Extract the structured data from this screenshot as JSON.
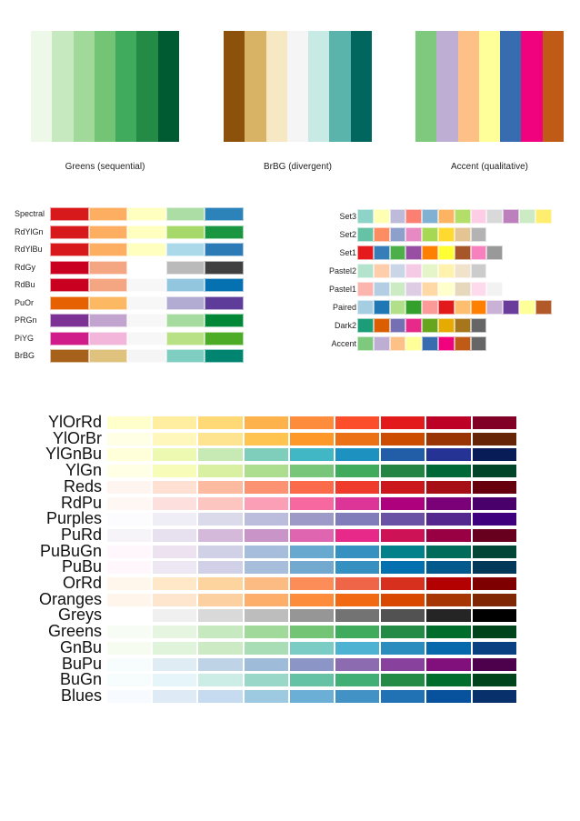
{
  "hero": [
    {
      "caption": "Greens (sequential)",
      "colors": [
        "#edf8e9",
        "#c7e9c0",
        "#a1d99b",
        "#74c476",
        "#41ab5d",
        "#238b45",
        "#005a32"
      ]
    },
    {
      "caption": "BrBG (divergent)",
      "colors": [
        "#8c510a",
        "#d8b365",
        "#f6e8c3",
        "#f5f5f5",
        "#c7eae5",
        "#5ab4ac",
        "#01665e"
      ]
    },
    {
      "caption": "Accent (qualitative)",
      "colors": [
        "#7fc97f",
        "#beaed4",
        "#fdc086",
        "#ffff99",
        "#386cb0",
        "#f0027f",
        "#bf5b17"
      ]
    }
  ],
  "diverging": [
    {
      "name": "Spectral",
      "colors": [
        "#d7191c",
        "#fdae61",
        "#ffffbf",
        "#abdda4",
        "#2b83ba"
      ]
    },
    {
      "name": "RdYlGn",
      "colors": [
        "#d7191c",
        "#fdae61",
        "#ffffbf",
        "#a6d96a",
        "#1a9641"
      ]
    },
    {
      "name": "RdYlBu",
      "colors": [
        "#d7191c",
        "#fdae61",
        "#ffffbf",
        "#abd9e9",
        "#2c7bb6"
      ]
    },
    {
      "name": "RdGy",
      "colors": [
        "#ca0020",
        "#f4a582",
        "#ffffff",
        "#bababa",
        "#404040"
      ]
    },
    {
      "name": "RdBu",
      "colors": [
        "#ca0020",
        "#f4a582",
        "#f7f7f7",
        "#92c5de",
        "#0571b0"
      ]
    },
    {
      "name": "PuOr",
      "colors": [
        "#e66101",
        "#fdb863",
        "#f7f7f7",
        "#b2abd2",
        "#5e3c99"
      ]
    },
    {
      "name": "PRGn",
      "colors": [
        "#7b3294",
        "#c2a5cf",
        "#f7f7f7",
        "#a6dba0",
        "#008837"
      ]
    },
    {
      "name": "PiYG",
      "colors": [
        "#d01c8b",
        "#f1b6da",
        "#f7f7f7",
        "#b8e186",
        "#4dac26"
      ]
    },
    {
      "name": "BrBG",
      "colors": [
        "#a6611a",
        "#dfc27d",
        "#f5f5f5",
        "#80cdc1",
        "#018571"
      ]
    }
  ],
  "qualitative": [
    {
      "name": "Set3",
      "colors": [
        "#8dd3c7",
        "#ffffb3",
        "#bebada",
        "#fb8072",
        "#80b1d3",
        "#fdb462",
        "#b3de69",
        "#fccde5",
        "#d9d9d9",
        "#bc80bd",
        "#ccebc5",
        "#ffed6f"
      ]
    },
    {
      "name": "Set2",
      "colors": [
        "#66c2a5",
        "#fc8d62",
        "#8da0cb",
        "#e78ac3",
        "#a6d854",
        "#ffd92f",
        "#e5c494",
        "#b3b3b3"
      ]
    },
    {
      "name": "Set1",
      "colors": [
        "#e41a1c",
        "#377eb8",
        "#4daf4a",
        "#984ea3",
        "#ff7f00",
        "#ffff33",
        "#a65628",
        "#f781bf",
        "#999999"
      ]
    },
    {
      "name": "Pastel2",
      "colors": [
        "#b3e2cd",
        "#fdcdac",
        "#cbd5e8",
        "#f4cae4",
        "#e6f5c9",
        "#fff2ae",
        "#f1e2cc",
        "#cccccc"
      ]
    },
    {
      "name": "Pastel1",
      "colors": [
        "#fbb4ae",
        "#b3cde3",
        "#ccebc5",
        "#decbe4",
        "#fed9a6",
        "#ffffcc",
        "#e5d8bd",
        "#fddaec",
        "#f2f2f2"
      ]
    },
    {
      "name": "Paired",
      "colors": [
        "#a6cee3",
        "#1f78b4",
        "#b2df8a",
        "#33a02c",
        "#fb9a99",
        "#e31a1c",
        "#fdbf6f",
        "#ff7f00",
        "#cab2d6",
        "#6a3d9a",
        "#ffff99",
        "#b15928"
      ]
    },
    {
      "name": "Dark2",
      "colors": [
        "#1b9e77",
        "#d95f02",
        "#7570b3",
        "#e7298a",
        "#66a61e",
        "#e6ab02",
        "#a6761d",
        "#666666"
      ]
    },
    {
      "name": "Accent",
      "colors": [
        "#7fc97f",
        "#beaed4",
        "#fdc086",
        "#ffff99",
        "#386cb0",
        "#f0027f",
        "#bf5b17",
        "#666666"
      ]
    }
  ],
  "sequential": [
    {
      "name": "YlOrRd",
      "colors": [
        "#ffffcc",
        "#ffeda0",
        "#fed976",
        "#feb24c",
        "#fd8d3c",
        "#fc4e2a",
        "#e31a1c",
        "#bd0026",
        "#800026"
      ]
    },
    {
      "name": "YlOrBr",
      "colors": [
        "#ffffe5",
        "#fff7bc",
        "#fee391",
        "#fec44f",
        "#fe9929",
        "#ec7014",
        "#cc4c02",
        "#993404",
        "#662506"
      ]
    },
    {
      "name": "YlGnBu",
      "colors": [
        "#ffffd9",
        "#edf8b1",
        "#c7e9b4",
        "#7fcdbb",
        "#41b6c4",
        "#1d91c0",
        "#225ea8",
        "#253494",
        "#081d58"
      ]
    },
    {
      "name": "YlGn",
      "colors": [
        "#ffffe5",
        "#f7fcb9",
        "#d9f0a3",
        "#addd8e",
        "#78c679",
        "#41ab5d",
        "#238443",
        "#006837",
        "#004529"
      ]
    },
    {
      "name": "Reds",
      "colors": [
        "#fff5f0",
        "#fee0d2",
        "#fcbba1",
        "#fc9272",
        "#fb6a4a",
        "#ef3b2c",
        "#cb181d",
        "#a50f15",
        "#67000d"
      ]
    },
    {
      "name": "RdPu",
      "colors": [
        "#fff7f3",
        "#fde0dd",
        "#fcc5c0",
        "#fa9fb5",
        "#f768a1",
        "#dd3497",
        "#ae017e",
        "#7a0177",
        "#49006a"
      ]
    },
    {
      "name": "Purples",
      "colors": [
        "#fcfbfd",
        "#efedf5",
        "#dadaeb",
        "#bcbddc",
        "#9e9ac8",
        "#807dba",
        "#6a51a3",
        "#54278f",
        "#3f007d"
      ]
    },
    {
      "name": "PuRd",
      "colors": [
        "#f7f4f9",
        "#e7e1ef",
        "#d4b9da",
        "#c994c7",
        "#df65b0",
        "#e7298a",
        "#ce1256",
        "#980043",
        "#67001f"
      ]
    },
    {
      "name": "PuBuGn",
      "colors": [
        "#fff7fb",
        "#ece2f0",
        "#d0d1e6",
        "#a6bddb",
        "#67a9cf",
        "#3690c0",
        "#02818a",
        "#016c59",
        "#014636"
      ]
    },
    {
      "name": "PuBu",
      "colors": [
        "#fff7fb",
        "#ece7f2",
        "#d0d1e6",
        "#a6bddb",
        "#74a9cf",
        "#3690c0",
        "#0570b0",
        "#045a8d",
        "#023858"
      ]
    },
    {
      "name": "OrRd",
      "colors": [
        "#fff7ec",
        "#fee8c8",
        "#fdd49e",
        "#fdbb84",
        "#fc8d59",
        "#ef6548",
        "#d7301f",
        "#b30000",
        "#7f0000"
      ]
    },
    {
      "name": "Oranges",
      "colors": [
        "#fff5eb",
        "#fee6ce",
        "#fdd0a2",
        "#fdae6b",
        "#fd8d3c",
        "#f16913",
        "#d94801",
        "#a63603",
        "#7f2704"
      ]
    },
    {
      "name": "Greys",
      "colors": [
        "#ffffff",
        "#f0f0f0",
        "#d9d9d9",
        "#bdbdbd",
        "#969696",
        "#737373",
        "#525252",
        "#252525",
        "#000000"
      ]
    },
    {
      "name": "Greens",
      "colors": [
        "#f7fcf5",
        "#e5f5e0",
        "#c7e9c0",
        "#a1d99b",
        "#74c476",
        "#41ab5d",
        "#238b45",
        "#006d2c",
        "#00441b"
      ]
    },
    {
      "name": "GnBu",
      "colors": [
        "#f7fcf0",
        "#e0f3db",
        "#ccebc5",
        "#a8ddb5",
        "#7bccc4",
        "#4eb3d3",
        "#2b8cbe",
        "#0868ac",
        "#084081"
      ]
    },
    {
      "name": "BuPu",
      "colors": [
        "#f7fcfd",
        "#e0ecf4",
        "#bfd3e6",
        "#9ebcda",
        "#8c96c6",
        "#8c6bb1",
        "#88419d",
        "#810f7c",
        "#4d004b"
      ]
    },
    {
      "name": "BuGn",
      "colors": [
        "#f7fcfd",
        "#e5f5f9",
        "#ccece6",
        "#99d8c9",
        "#66c2a4",
        "#41ae76",
        "#238b45",
        "#006d2c",
        "#00441b"
      ]
    },
    {
      "name": "Blues",
      "colors": [
        "#f7fbff",
        "#deebf7",
        "#c6dbef",
        "#9ecae1",
        "#6baed6",
        "#4292c6",
        "#2171b5",
        "#08519c",
        "#08306b"
      ]
    }
  ]
}
